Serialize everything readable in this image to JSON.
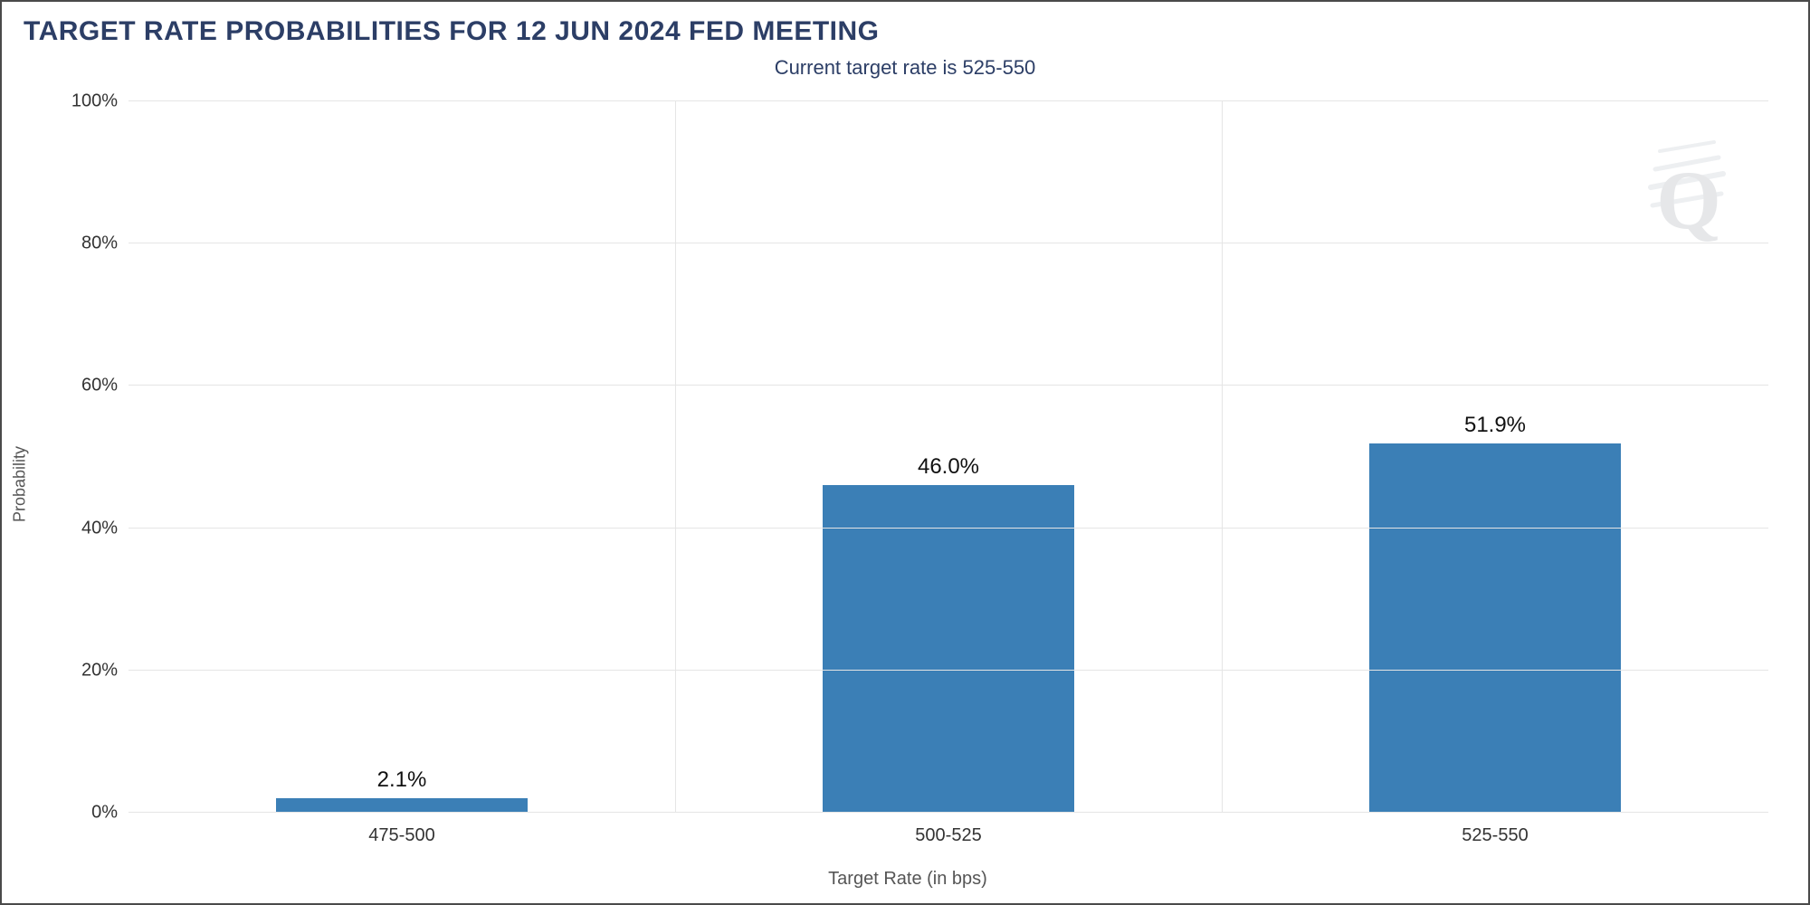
{
  "title": "TARGET RATE PROBABILITIES FOR 12 JUN 2024 FED MEETING",
  "subtitle": "Current target rate is 525-550",
  "chart": {
    "type": "bar",
    "ylabel": "Probability",
    "xlabel": "Target Rate (in bps)",
    "ylim": [
      0,
      100
    ],
    "ytick_step": 20,
    "yticks": [
      0,
      20,
      40,
      60,
      80,
      100
    ],
    "ytick_labels": [
      "0%",
      "20%",
      "40%",
      "60%",
      "80%",
      "100%"
    ],
    "categories": [
      "475-500",
      "500-525",
      "525-550"
    ],
    "values": [
      2.1,
      46.0,
      51.9
    ],
    "value_labels": [
      "2.1%",
      "46.0%",
      "51.9%"
    ],
    "bar_color": "#3b7fb6",
    "bar_width_pct": 46,
    "background_color": "#ffffff",
    "gridline_color": "#e5e5e5",
    "baseline_color": "#bdbdbd",
    "title_color": "#2c3e66",
    "subtitle_color": "#2c3e66",
    "axis_label_color": "#555555",
    "tick_label_color": "#333333",
    "value_label_color": "#111111",
    "title_fontsize": 30,
    "subtitle_fontsize": 22,
    "axis_label_fontsize": 20,
    "tick_fontsize": 20,
    "value_fontsize": 24,
    "watermark_glyph": "Q",
    "watermark_color": "#b8bcc2"
  }
}
